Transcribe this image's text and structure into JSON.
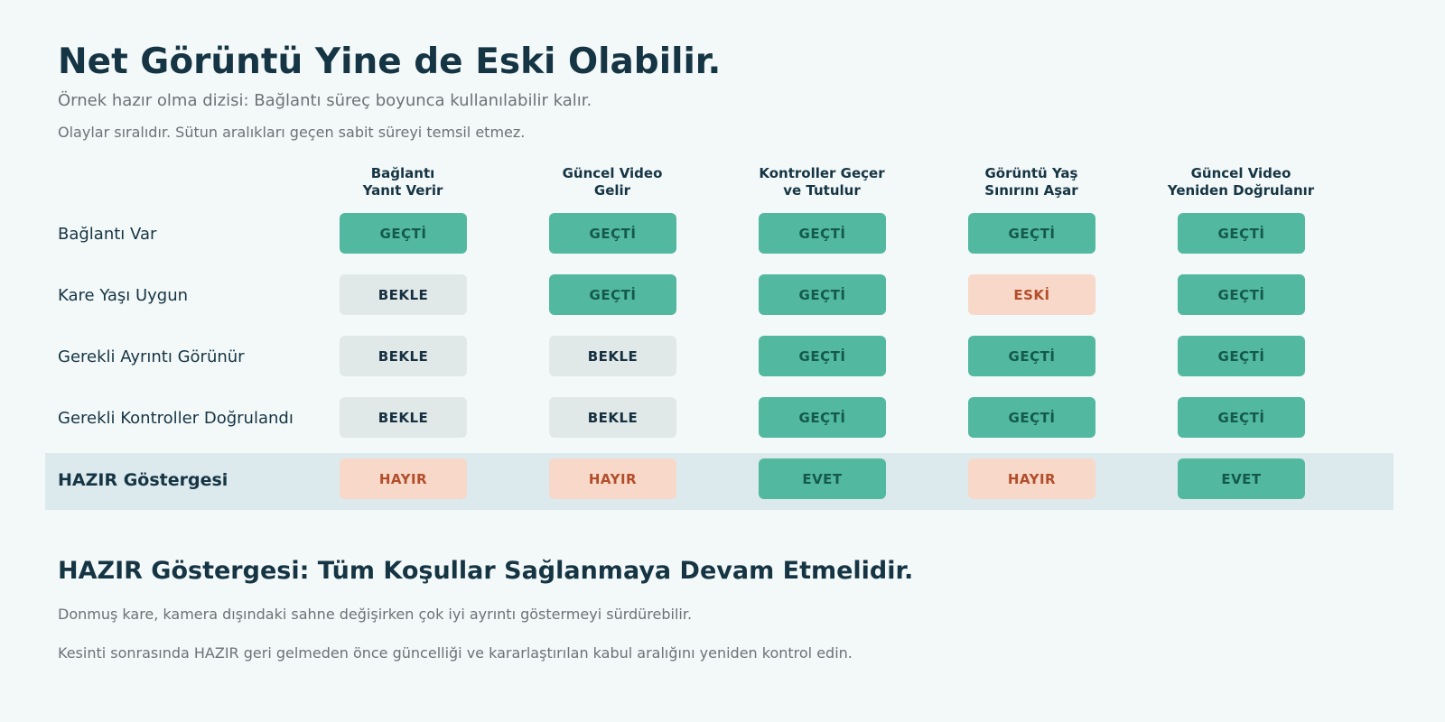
{
  "header": {
    "title": "Net Görüntü Yine de Eski Olabilir.",
    "subtitle": "Örnek hazır olma dizisi: Bağlantı süreç boyunca kullanılabilir kalır.",
    "note": "Olaylar sıralıdır. Sütun aralıkları geçen sabit süreyi temsil etmez."
  },
  "columns": [
    {
      "line1": "Bağlantı",
      "line2": "Yanıt Verir"
    },
    {
      "line1": "Güncel Video",
      "line2": "Gelir"
    },
    {
      "line1": "Kontroller Geçer",
      "line2": "ve Tutulur"
    },
    {
      "line1": "Görüntü Yaş",
      "line2": "Sınırını Aşar"
    },
    {
      "line1": "Güncel Video",
      "line2": "Yeniden Doğrulanır"
    }
  ],
  "rows": [
    {
      "label": "Bağlantı Var",
      "cells": [
        {
          "text": "GEÇTİ",
          "status": "pass"
        },
        {
          "text": "GEÇTİ",
          "status": "pass"
        },
        {
          "text": "GEÇTİ",
          "status": "pass"
        },
        {
          "text": "GEÇTİ",
          "status": "pass"
        },
        {
          "text": "GEÇTİ",
          "status": "pass"
        }
      ]
    },
    {
      "label": "Kare Yaşı Uygun",
      "cells": [
        {
          "text": "BEKLE",
          "status": "wait"
        },
        {
          "text": "GEÇTİ",
          "status": "pass"
        },
        {
          "text": "GEÇTİ",
          "status": "pass"
        },
        {
          "text": "ESKİ",
          "status": "stale"
        },
        {
          "text": "GEÇTİ",
          "status": "pass"
        }
      ]
    },
    {
      "label": "Gerekli Ayrıntı Görünür",
      "cells": [
        {
          "text": "BEKLE",
          "status": "wait"
        },
        {
          "text": "BEKLE",
          "status": "wait"
        },
        {
          "text": "GEÇTİ",
          "status": "pass"
        },
        {
          "text": "GEÇTİ",
          "status": "pass"
        },
        {
          "text": "GEÇTİ",
          "status": "pass"
        }
      ]
    },
    {
      "label": "Gerekli Kontroller Doğrulandı",
      "cells": [
        {
          "text": "BEKLE",
          "status": "wait"
        },
        {
          "text": "BEKLE",
          "status": "wait"
        },
        {
          "text": "GEÇTİ",
          "status": "pass"
        },
        {
          "text": "GEÇTİ",
          "status": "pass"
        },
        {
          "text": "GEÇTİ",
          "status": "pass"
        }
      ]
    }
  ],
  "ready_row": {
    "label": "HAZIR Göstergesi",
    "cells": [
      {
        "text": "HAYIR",
        "status": "no"
      },
      {
        "text": "HAYIR",
        "status": "no"
      },
      {
        "text": "EVET",
        "status": "yes"
      },
      {
        "text": "HAYIR",
        "status": "no"
      },
      {
        "text": "EVET",
        "status": "yes"
      }
    ]
  },
  "colors": {
    "pass": "#52b8a0",
    "wait": "#e0e8e8",
    "stale": "#f8d8c8",
    "ready_band": "#dce9ed"
  },
  "footer": {
    "title": "HAZIR Göstergesi: Tüm Koşullar Sağlanmaya Devam Etmelidir.",
    "line1": "Donmuş kare, kamera dışındaki sahne değişirken çok iyi ayrıntı göstermeyi sürdürebilir.",
    "line2": "Kesinti sonrasında HAZIR geri gelmeden önce güncelliği ve kararlaştırılan kabul aralığını yeniden kontrol edin."
  }
}
